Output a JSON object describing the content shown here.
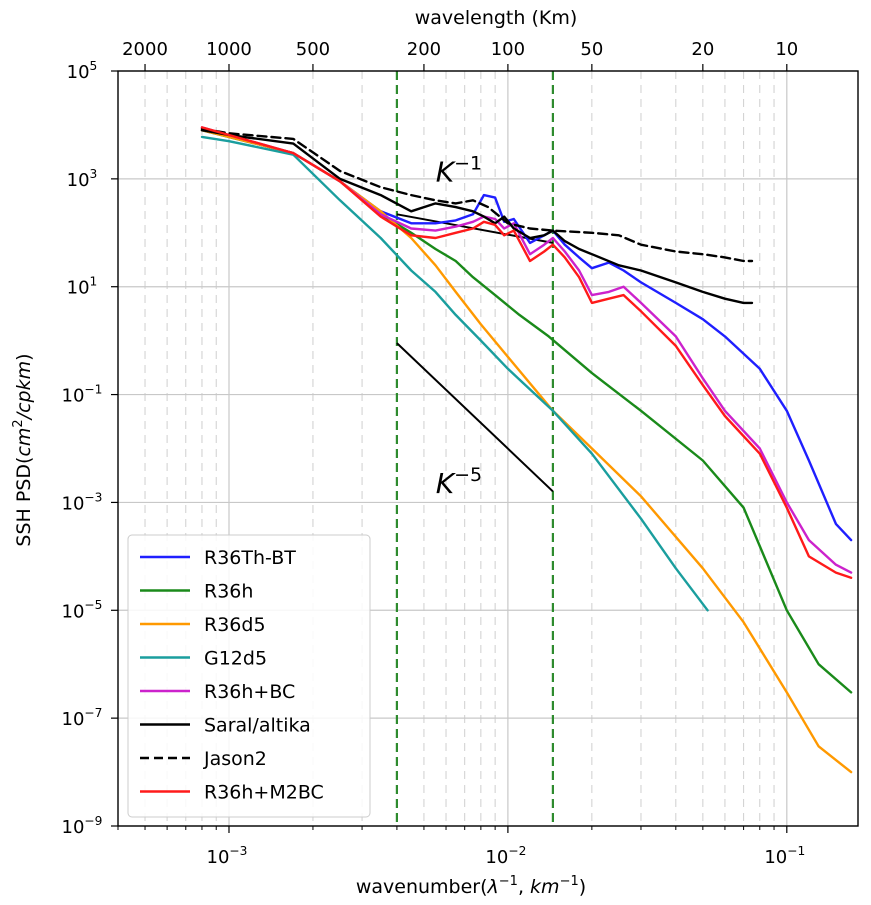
{
  "chart_data": {
    "type": "line",
    "xlabel_html": [
      "wavenumber(",
      "λ",
      "−1",
      ", ",
      "km",
      "−1",
      ")"
    ],
    "ylabel_parts": [
      "SSH PSD(",
      "cm",
      "2",
      "/",
      "cpkm",
      ")"
    ],
    "top_axis_label": "wavelength (Km)",
    "xscale": "log",
    "yscale": "log",
    "xlim": [
      0.0004,
      0.18
    ],
    "ylim": [
      1e-09,
      100000
    ],
    "grid": true,
    "legend_position": "lower-left",
    "x_ticks": [
      {
        "value": 0.001,
        "base": "10",
        "exp": "−3"
      },
      {
        "value": 0.01,
        "base": "10",
        "exp": "−2"
      },
      {
        "value": 0.1,
        "base": "10",
        "exp": "−1"
      }
    ],
    "y_ticks": [
      {
        "value": 100000,
        "base": "10",
        "exp": "5"
      },
      {
        "value": 1000,
        "base": "10",
        "exp": "3"
      },
      {
        "value": 10,
        "base": "10",
        "exp": "1"
      },
      {
        "value": 0.1,
        "base": "10",
        "exp": "−1"
      },
      {
        "value": 0.001,
        "base": "10",
        "exp": "−3"
      },
      {
        "value": 1e-05,
        "base": "10",
        "exp": "−5"
      },
      {
        "value": 1e-07,
        "base": "10",
        "exp": "−7"
      },
      {
        "value": 1e-09,
        "base": "10",
        "exp": "−9"
      }
    ],
    "top_ticks": [
      {
        "wavelength": 2000,
        "label": "2000"
      },
      {
        "wavelength": 1000,
        "label": "1000"
      },
      {
        "wavelength": 500,
        "label": "500"
      },
      {
        "wavelength": 200,
        "label": "200"
      },
      {
        "wavelength": 100,
        "label": "100"
      },
      {
        "wavelength": 50,
        "label": "50"
      },
      {
        "wavelength": 20,
        "label": "20"
      },
      {
        "wavelength": 10,
        "label": "10"
      }
    ],
    "reference_lines": [
      {
        "name": "K^-1",
        "base": "K",
        "exp": "−1",
        "x": [
          0.004,
          0.0145
        ],
        "y": [
          220,
          65
        ],
        "label_x": 0.0065,
        "label_y": 900
      },
      {
        "name": "K^-5",
        "base": "K",
        "exp": "−5",
        "x": [
          0.004,
          0.0145
        ],
        "y": [
          0.9,
          0.0016
        ],
        "label_x": 0.0065,
        "label_y": 0.0015
      }
    ],
    "vertical_markers": [
      {
        "x": 0.004,
        "color": "#2e8b2e"
      },
      {
        "x": 0.0145,
        "color": "#2e8b2e"
      }
    ],
    "series": [
      {
        "name": "R36Th-BT",
        "color": "#1f1fff",
        "dash": "solid",
        "x": [
          0.0008,
          0.001,
          0.0017,
          0.0025,
          0.0035,
          0.0045,
          0.0055,
          0.0065,
          0.0075,
          0.0082,
          0.009,
          0.0097,
          0.0105,
          0.012,
          0.0135,
          0.0145,
          0.016,
          0.018,
          0.02,
          0.023,
          0.026,
          0.03,
          0.04,
          0.05,
          0.06,
          0.08,
          0.1,
          0.12,
          0.15,
          0.17
        ],
        "y": [
          8000,
          6000,
          3000,
          900,
          250,
          150,
          150,
          170,
          220,
          500,
          450,
          160,
          180,
          65,
          90,
          110,
          60,
          35,
          22,
          28,
          20,
          12,
          5,
          2.5,
          1.2,
          0.3,
          0.05,
          0.006,
          0.0004,
          0.0002
        ]
      },
      {
        "name": "R36h",
        "color": "#1a8a1a",
        "dash": "solid",
        "x": [
          0.0008,
          0.001,
          0.0017,
          0.0025,
          0.0035,
          0.0045,
          0.0055,
          0.0065,
          0.0075,
          0.009,
          0.011,
          0.014,
          0.02,
          0.03,
          0.05,
          0.07,
          0.1,
          0.13,
          0.17
        ],
        "y": [
          8000,
          6000,
          3000,
          900,
          220,
          100,
          50,
          30,
          15,
          7,
          3,
          1.2,
          0.25,
          0.05,
          0.006,
          0.0008,
          1e-05,
          1e-06,
          3e-07
        ]
      },
      {
        "name": "R36d5",
        "color": "#ff9900",
        "dash": "solid",
        "x": [
          0.0008,
          0.001,
          0.0017,
          0.0025,
          0.0035,
          0.0045,
          0.0055,
          0.0065,
          0.008,
          0.01,
          0.0145,
          0.02,
          0.03,
          0.05,
          0.07,
          0.1,
          0.13,
          0.17
        ],
        "y": [
          8000,
          6000,
          3000,
          900,
          250,
          80,
          25,
          8,
          2,
          0.5,
          0.05,
          0.01,
          0.0013,
          6e-05,
          6e-06,
          3e-07,
          3e-08,
          1e-08
        ]
      },
      {
        "name": "G12d5",
        "color": "#1a9e9e",
        "dash": "solid",
        "x": [
          0.0008,
          0.001,
          0.0017,
          0.0025,
          0.0035,
          0.0045,
          0.0055,
          0.0065,
          0.008,
          0.01,
          0.0145,
          0.02,
          0.03,
          0.04,
          0.052
        ],
        "y": [
          6000,
          5000,
          2800,
          400,
          80,
          20,
          8,
          3,
          1,
          0.3,
          0.05,
          0.008,
          0.0005,
          6e-05,
          1e-05
        ]
      },
      {
        "name": "R36h+BC",
        "color": "#cc22cc",
        "dash": "solid",
        "x": [
          0.0008,
          0.001,
          0.0017,
          0.0025,
          0.0035,
          0.0045,
          0.0055,
          0.0065,
          0.0075,
          0.0082,
          0.009,
          0.0097,
          0.0105,
          0.012,
          0.0135,
          0.0145,
          0.016,
          0.018,
          0.02,
          0.023,
          0.026,
          0.03,
          0.04,
          0.05,
          0.06,
          0.08,
          0.1,
          0.12,
          0.15,
          0.17
        ],
        "y": [
          9000,
          6500,
          3000,
          900,
          220,
          120,
          110,
          130,
          160,
          200,
          180,
          120,
          150,
          40,
          60,
          80,
          45,
          20,
          7,
          8,
          10,
          5,
          1.2,
          0.2,
          0.05,
          0.01,
          0.001,
          0.0002,
          7e-05,
          5e-05
        ]
      },
      {
        "name": "Saral/altika",
        "color": "#000000",
        "dash": "solid",
        "x": [
          0.0008,
          0.001,
          0.0017,
          0.0025,
          0.0035,
          0.0045,
          0.0055,
          0.0065,
          0.0075,
          0.0082,
          0.009,
          0.0097,
          0.0105,
          0.012,
          0.0135,
          0.0145,
          0.016,
          0.018,
          0.02,
          0.025,
          0.03,
          0.04,
          0.05,
          0.06,
          0.07,
          0.075
        ],
        "y": [
          8000,
          6500,
          4500,
          1000,
          500,
          250,
          350,
          300,
          250,
          200,
          150,
          200,
          120,
          80,
          90,
          110,
          70,
          50,
          40,
          25,
          20,
          12,
          8,
          6,
          5,
          5
        ]
      },
      {
        "name": "Jason2",
        "color": "#000000",
        "dash": "dashed",
        "x": [
          0.0008,
          0.001,
          0.0017,
          0.0025,
          0.0035,
          0.0045,
          0.0055,
          0.0065,
          0.0075,
          0.0085,
          0.01,
          0.012,
          0.0145,
          0.02,
          0.025,
          0.03,
          0.04,
          0.05,
          0.06,
          0.07,
          0.075
        ],
        "y": [
          8500,
          7000,
          5500,
          1400,
          700,
          500,
          400,
          350,
          400,
          300,
          150,
          120,
          110,
          100,
          90,
          60,
          45,
          40,
          35,
          30,
          30
        ]
      },
      {
        "name": "R36h+M2BC",
        "color": "#ff1a1a",
        "dash": "solid",
        "x": [
          0.0008,
          0.001,
          0.0017,
          0.0025,
          0.0035,
          0.0045,
          0.0055,
          0.0065,
          0.0075,
          0.0082,
          0.009,
          0.0097,
          0.0105,
          0.012,
          0.0135,
          0.0145,
          0.016,
          0.018,
          0.02,
          0.023,
          0.026,
          0.03,
          0.04,
          0.05,
          0.06,
          0.08,
          0.1,
          0.12,
          0.15,
          0.17
        ],
        "y": [
          9000,
          6500,
          3000,
          900,
          200,
          90,
          80,
          100,
          120,
          160,
          140,
          90,
          110,
          30,
          45,
          60,
          35,
          15,
          5,
          6,
          7,
          3.5,
          0.8,
          0.15,
          0.04,
          0.008,
          0.0008,
          0.0001,
          5e-05,
          4e-05
        ]
      }
    ]
  }
}
